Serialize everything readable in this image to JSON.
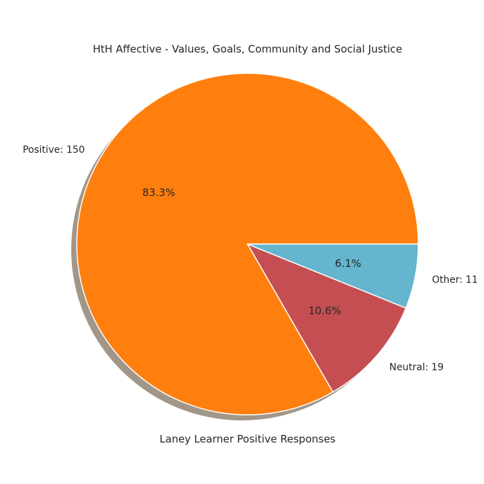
{
  "chart_data": {
    "type": "pie",
    "title": "HtH Affective - Values, Goals, Community and Social Justice",
    "xlabel": "Laney Learner Positive Responses",
    "slices": [
      {
        "label": "Positive: 150",
        "value": 150,
        "percent_label": "83.3%",
        "color": "#ff7f0e"
      },
      {
        "label": "Neutral: 19",
        "value": 19,
        "percent_label": "10.6%",
        "color": "#c44e52"
      },
      {
        "label": "Other: 11",
        "value": 11,
        "percent_label": "6.1%",
        "color": "#64b5cd"
      }
    ],
    "start_angle_deg": 0,
    "direction": "counterclockwise",
    "shadow": true
  }
}
